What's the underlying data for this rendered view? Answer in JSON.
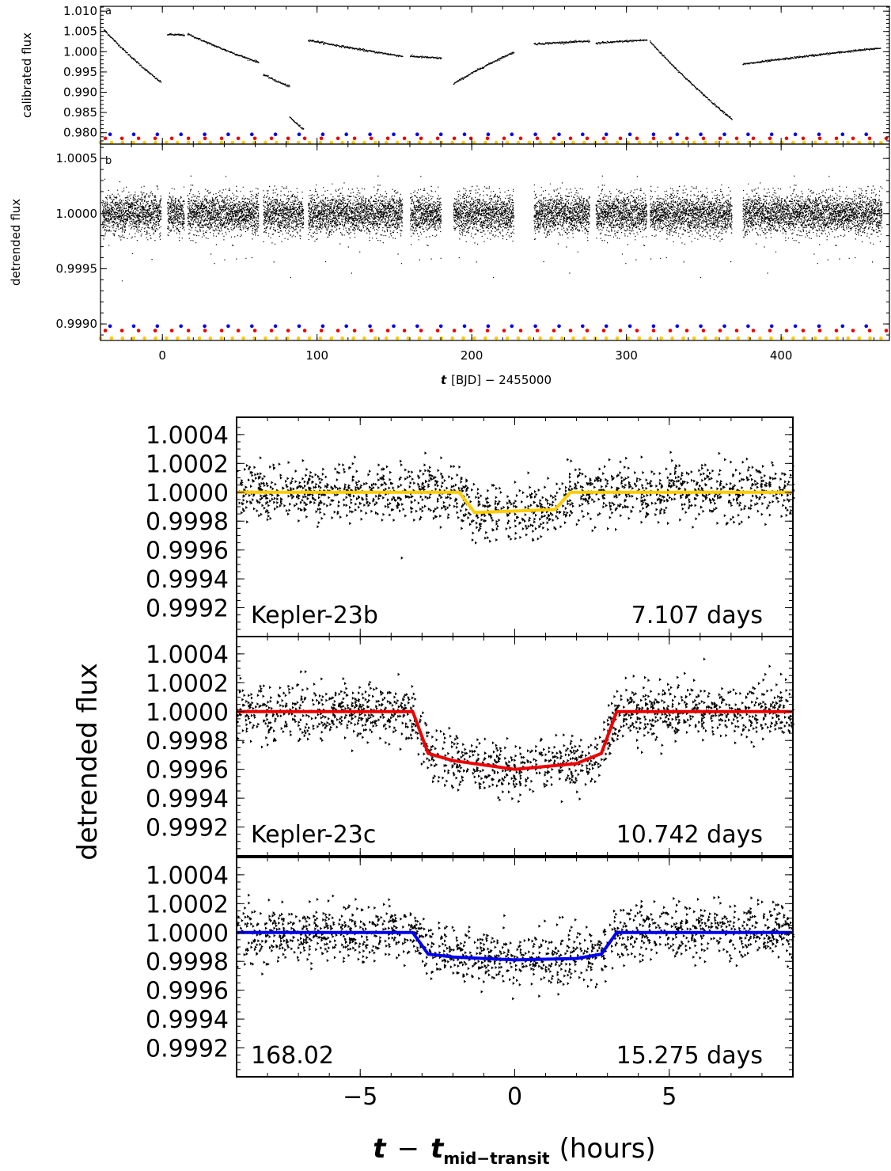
{
  "chart_data": [
    {
      "type": "scatter",
      "panel_tag": "a",
      "ylabel": "calibrated flux",
      "xlim": [
        -40,
        470
      ],
      "ylim": [
        0.9772,
        1.0112
      ],
      "yticks": [
        "1.010",
        "1.005",
        "1.000",
        "0.995",
        "0.990",
        "0.985",
        "0.980"
      ],
      "ytick_values": [
        1.01,
        1.005,
        1.0,
        0.995,
        0.99,
        0.985,
        0.98
      ],
      "segments": [
        {
          "x0": -38,
          "x1": -1,
          "y0": 1.0055,
          "y1": 0.9925
        },
        {
          "x0": 3,
          "x1": 14,
          "y0": 1.0044,
          "y1": 1.0042
        },
        {
          "x0": 16,
          "x1": 62,
          "y0": 1.0045,
          "y1": 0.9975
        },
        {
          "x0": 65,
          "x1": 82,
          "y0": 0.9945,
          "y1": 0.9915
        },
        {
          "x0": 82,
          "x1": 91,
          "y0": 0.984,
          "y1": 0.981
        },
        {
          "x0": 94,
          "x1": 155,
          "y0": 1.003,
          "y1": 0.999
        },
        {
          "x0": 160,
          "x1": 180,
          "y0": 0.999,
          "y1": 0.9985
        },
        {
          "x0": 188,
          "x1": 227,
          "y0": 0.9922,
          "y1": 1.0
        },
        {
          "x0": 240,
          "x1": 276,
          "y0": 1.002,
          "y1": 1.0027
        },
        {
          "x0": 280,
          "x1": 313,
          "y0": 1.0022,
          "y1": 1.003
        },
        {
          "x0": 315,
          "x1": 368,
          "y0": 1.0026,
          "y1": 0.9835
        },
        {
          "x0": 375,
          "x1": 464,
          "y0": 0.997,
          "y1": 1.001
        }
      ],
      "transit_markers": [
        {
          "planet": "Kepler-23b",
          "color": "#ffcc00",
          "period_days": 7.107,
          "level": 0.9776
        },
        {
          "planet": "Kepler-23c",
          "color": "#ee0000",
          "period_days": 10.742,
          "level": 0.9786
        },
        {
          "planet": "168.02",
          "color": "#0000ee",
          "period_days": 15.275,
          "level": 0.9796
        }
      ]
    },
    {
      "type": "scatter",
      "panel_tag": "b",
      "ylabel": "detrended flux",
      "xlabel_italic": "t",
      "xlabel": "[BJD] − 2455000",
      "xlim": [
        -40,
        470
      ],
      "ylim": [
        0.99885,
        1.00063
      ],
      "xticks": [
        "0",
        "100",
        "200",
        "300",
        "400"
      ],
      "xtick_values": [
        0,
        100,
        200,
        300,
        400
      ],
      "yticks": [
        "1.0005",
        "1.0000",
        "0.9995",
        "0.9990"
      ],
      "ytick_values": [
        1.0005,
        1.0,
        0.9995,
        0.999
      ],
      "noise_sigma": 9e-05,
      "transit_markers": [
        {
          "planet": "Kepler-23b",
          "color": "#ffcc00",
          "period_days": 7.107,
          "level": 0.99887
        },
        {
          "planet": "Kepler-23c",
          "color": "#ee0000",
          "period_days": 10.742,
          "level": 0.99894
        },
        {
          "planet": "168.02",
          "color": "#0000ee",
          "period_days": 15.275,
          "level": 0.99898
        }
      ]
    },
    {
      "type": "line",
      "xlabel_t": "t",
      "xlabel_minus": "−",
      "xlabel_t2": "t",
      "xlabel_sub": "mid−transit",
      "xlabel_unit": "(hours)",
      "ylabel": "detrended flux",
      "xlim": [
        -9,
        9
      ],
      "ylim": [
        0.999,
        1.00052
      ],
      "xticks": [
        "−5",
        "0",
        "5"
      ],
      "xtick_values": [
        -5,
        0,
        5
      ],
      "yticks": [
        "1.0004",
        "1.0002",
        "1.0000",
        "0.9998",
        "0.9996",
        "0.9994",
        "0.9992"
      ],
      "ytick_values": [
        1.0004,
        1.0002,
        1.0,
        0.9998,
        0.9996,
        0.9994,
        0.9992
      ],
      "noise_sigma": 9.5e-05,
      "series": [
        {
          "name": "Kepler-23b",
          "period_label": "7.107 days",
          "color": "#ffcc00",
          "x": [
            -9,
            -1.8,
            -1.3,
            1.3,
            1.8,
            9
          ],
          "y": [
            1.0,
            1.0,
            0.99986,
            0.99988,
            1.0,
            1.0
          ]
        },
        {
          "name": "Kepler-23c",
          "period_label": "10.742 days",
          "color": "#ee0000",
          "x": [
            -9,
            -3.3,
            -2.8,
            -2.0,
            0,
            2.0,
            2.8,
            3.3,
            9
          ],
          "y": [
            1.0,
            1.0,
            0.99971,
            0.99966,
            0.9996,
            0.99964,
            0.99971,
            1.0,
            1.0
          ]
        },
        {
          "name": "168.02",
          "period_label": "15.275 days",
          "color": "#0000ee",
          "x": [
            -9,
            -3.3,
            -2.8,
            -2.0,
            0,
            2.0,
            2.8,
            3.3,
            9
          ],
          "y": [
            1.0,
            1.0,
            0.99985,
            0.99983,
            0.99981,
            0.99982,
            0.99985,
            1.0,
            1.0
          ]
        }
      ]
    }
  ]
}
